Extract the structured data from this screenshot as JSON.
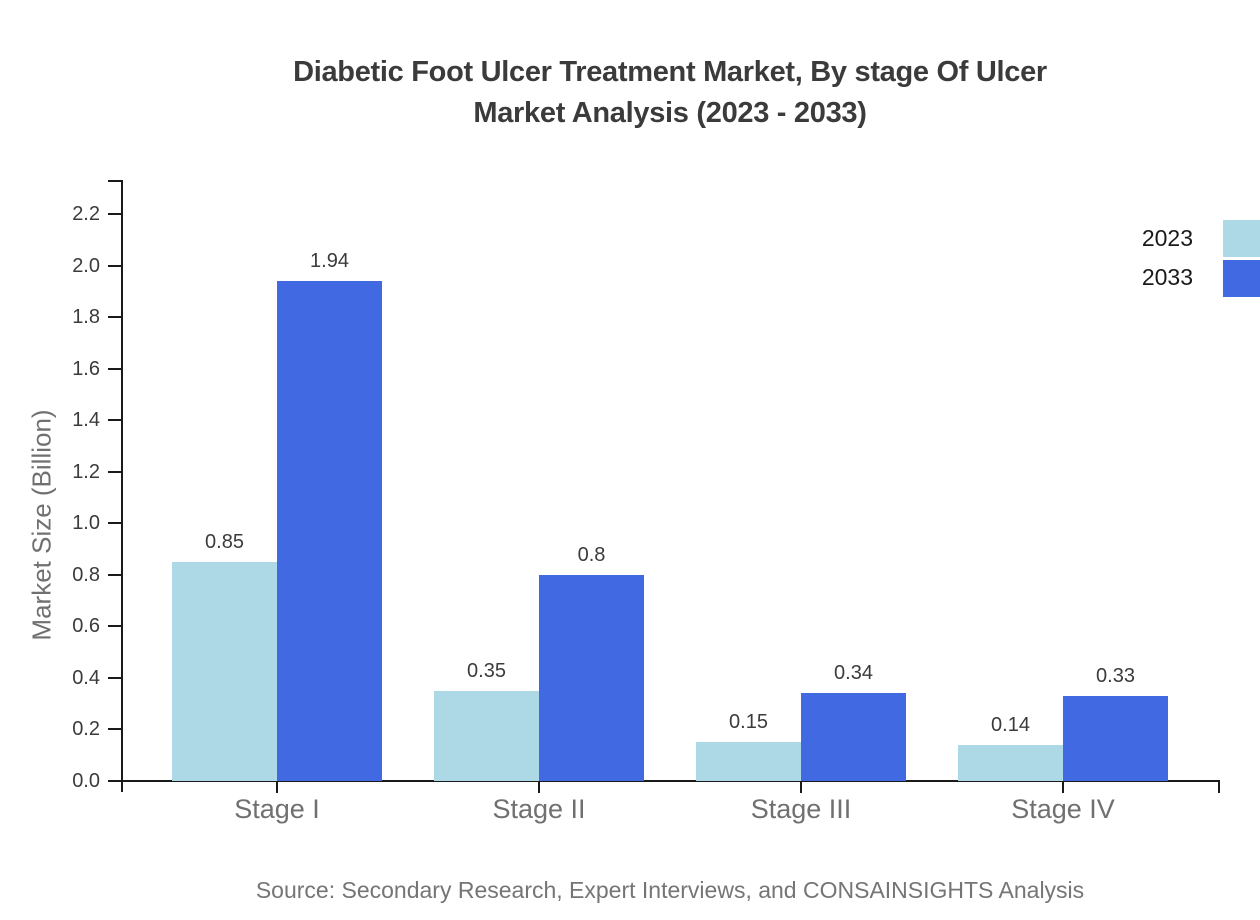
{
  "title": {
    "line1": "Diabetic Foot Ulcer Treatment Market, By stage Of Ulcer",
    "line2": "Market Analysis (2023 - 2033)"
  },
  "y_axis": {
    "label": "Market Size (Billion)",
    "tick_labels": [
      "0.0",
      "0.2",
      "0.4",
      "0.6",
      "0.8",
      "1.0",
      "1.2",
      "1.4",
      "1.6",
      "1.8",
      "2.0",
      "2.2"
    ]
  },
  "legend": {
    "items": [
      {
        "label": "2023",
        "color": "#ADD8E6"
      },
      {
        "label": "2033",
        "color": "#4169E1"
      }
    ]
  },
  "source": "Source: Secondary Research, Expert Interviews, and CONSAINSIGHTS Analysis",
  "chart_data": {
    "type": "bar",
    "title": "Diabetic Foot Ulcer Treatment Market, By stage Of Ulcer Market Analysis (2023 - 2033)",
    "categories": [
      "Stage I",
      "Stage II",
      "Stage III",
      "Stage IV"
    ],
    "series": [
      {
        "name": "2023",
        "color": "#ADD8E6",
        "values": [
          0.85,
          0.35,
          0.15,
          0.14
        ]
      },
      {
        "name": "2033",
        "color": "#4169E1",
        "values": [
          1.94,
          0.8,
          0.34,
          0.33
        ]
      }
    ],
    "xlabel": "",
    "ylabel": "Market Size (Billion)",
    "ylim": [
      0,
      2.33
    ],
    "ytick_step": 0.2,
    "grid": false,
    "bar_value_labels": true,
    "legend_position": "upper right"
  }
}
